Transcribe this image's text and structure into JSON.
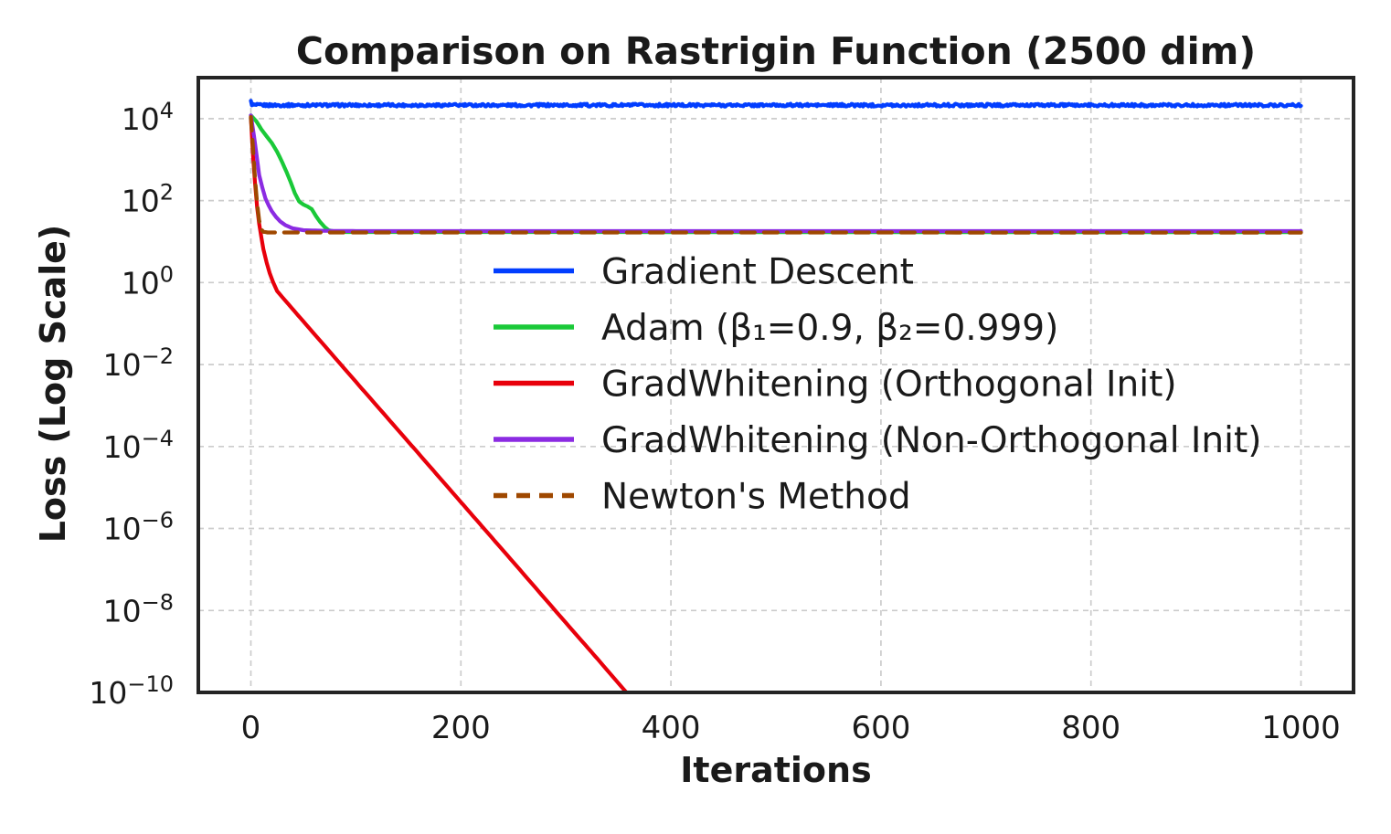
{
  "chart_data": {
    "type": "line",
    "title": "Comparison on Rastrigin Function (2500 dim)",
    "xlabel": "Iterations",
    "ylabel": "Loss (Log Scale)",
    "x_ticks": [
      0,
      200,
      400,
      600,
      800,
      1000
    ],
    "y_tick_exponents": [
      4,
      2,
      0,
      -2,
      -4,
      -6,
      -8,
      -10
    ],
    "xlim": [
      -50,
      1050
    ],
    "ylim_log10": [
      -10,
      5
    ],
    "y_scale": "log",
    "grid": true,
    "grid_color": "#cccccc",
    "spine_color": "#242424",
    "text_color": "#1a1a1a",
    "legend_position": "center",
    "legend_frame": false,
    "series": [
      {
        "name": "Gradient Descent",
        "color": "#023EFF",
        "style": "solid",
        "noise_log10": 0.034,
        "points": [
          [
            0,
            26000
          ],
          [
            1,
            22500
          ],
          [
            3,
            21300
          ],
          [
            1000,
            21300
          ]
        ]
      },
      {
        "name": "Adam (β₁=0.9, β₂=0.999)",
        "color": "#1AC938",
        "style": "solid",
        "points": [
          [
            0,
            12000
          ],
          [
            5,
            8800
          ],
          [
            10,
            5500
          ],
          [
            15,
            3700
          ],
          [
            20,
            2550
          ],
          [
            25,
            1550
          ],
          [
            30,
            850
          ],
          [
            34,
            500
          ],
          [
            38,
            280
          ],
          [
            42,
            150
          ],
          [
            46,
            95
          ],
          [
            50,
            80
          ],
          [
            54,
            72
          ],
          [
            58,
            62
          ],
          [
            62,
            42
          ],
          [
            66,
            30
          ],
          [
            70,
            23
          ],
          [
            74,
            19
          ],
          [
            80,
            17.5
          ],
          [
            90,
            17.1
          ],
          [
            1000,
            17.0
          ]
        ]
      },
      {
        "name": "GradWhitening (Orthogonal Init)",
        "color": "#E8000B",
        "style": "solid",
        "points": [
          [
            0,
            11000
          ],
          [
            2,
            1300
          ],
          [
            4,
            260
          ],
          [
            6,
            70
          ],
          [
            8,
            27
          ],
          [
            10,
            13
          ],
          [
            12,
            6.5
          ],
          [
            15,
            3.1
          ],
          [
            18,
            1.7
          ],
          [
            21,
            1.05
          ],
          [
            25,
            0.62
          ],
          [
            30,
            0.44
          ],
          [
            50,
            0.113
          ],
          [
            100,
            0.0038
          ],
          [
            150,
            0.00013
          ],
          [
            200,
            4.4e-06
          ],
          [
            250,
            1.5e-07
          ],
          [
            300,
            5e-09
          ],
          [
            330,
            6.6e-10
          ],
          [
            360,
            8.5e-11
          ]
        ]
      },
      {
        "name": "GradWhitening (Non-Orthogonal Init)",
        "color": "#8B2BE2",
        "style": "solid",
        "points": [
          [
            0,
            12000
          ],
          [
            3,
            3800
          ],
          [
            5,
            1600
          ],
          [
            8,
            420
          ],
          [
            11,
            205
          ],
          [
            14,
            112
          ],
          [
            17,
            76
          ],
          [
            20,
            55
          ],
          [
            24,
            40
          ],
          [
            28,
            31
          ],
          [
            33,
            25
          ],
          [
            40,
            21
          ],
          [
            50,
            19
          ],
          [
            70,
            18.3
          ],
          [
            100,
            18.05
          ],
          [
            1000,
            18.0
          ]
        ]
      },
      {
        "name": "Newton's Method",
        "color": "#9F4800",
        "style": "dashed",
        "points": [
          [
            0,
            11000
          ],
          [
            2,
            2000
          ],
          [
            4,
            330
          ],
          [
            6,
            88
          ],
          [
            8,
            33
          ],
          [
            10,
            20
          ],
          [
            12,
            17.3
          ],
          [
            16,
            16.7
          ],
          [
            1000,
            16.6
          ]
        ]
      }
    ]
  }
}
